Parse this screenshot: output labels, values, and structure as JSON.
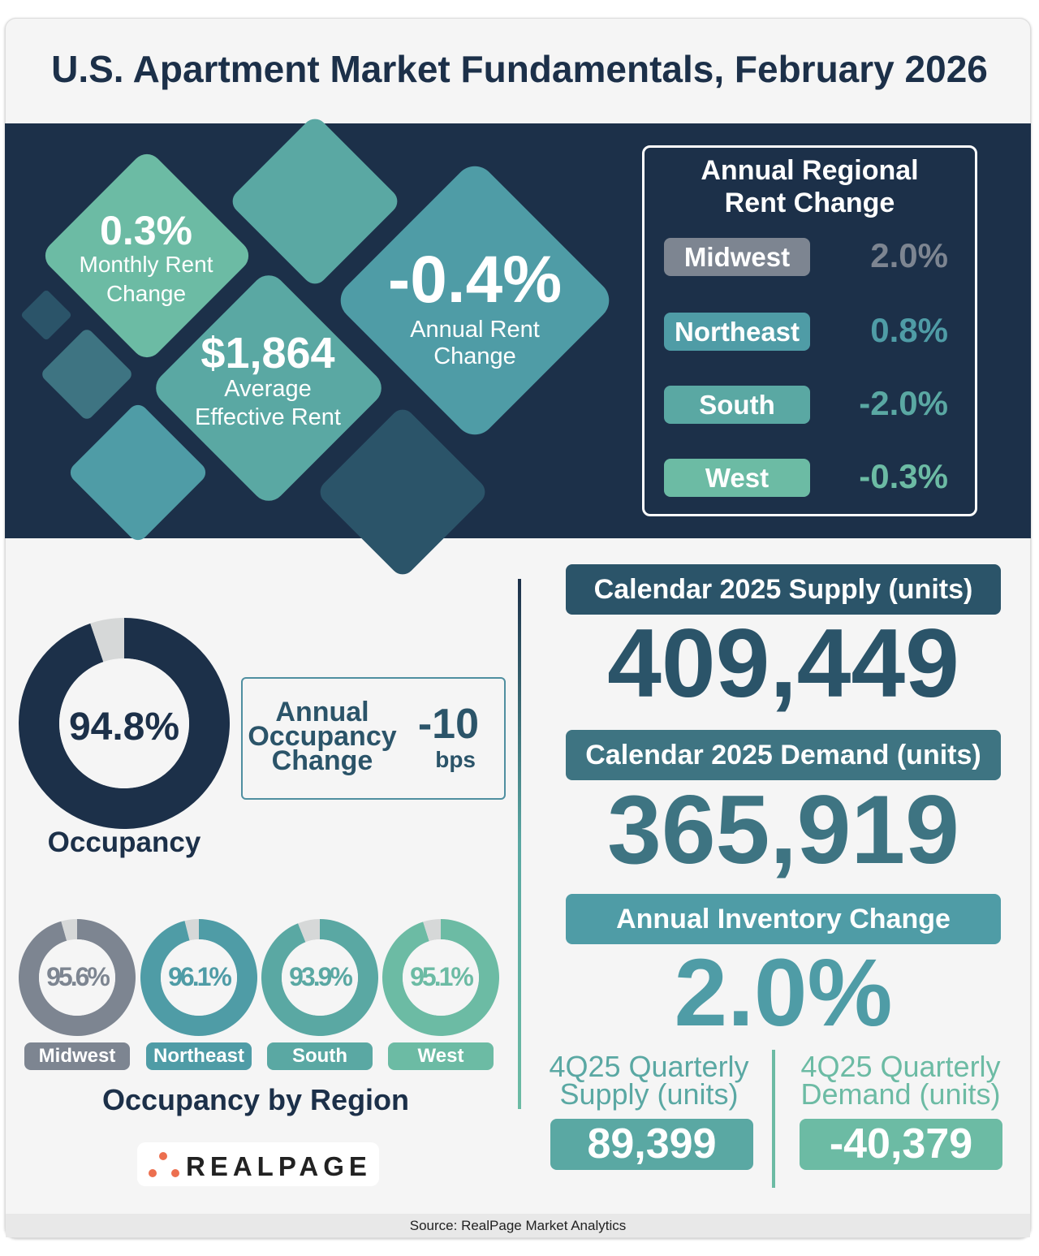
{
  "title": "U.S. Apartment Market Fundamentals, February 2026",
  "colors": {
    "navy": "#1c3049",
    "midwest": "#7d8591",
    "northeast": "#4f9ca6",
    "south": "#5aa8a3",
    "west": "#6cbba4",
    "dark_teal": "#2b5469"
  },
  "hero": {
    "monthly": {
      "value": "0.3%",
      "label1": "Monthly Rent",
      "label2": "Change"
    },
    "aer": {
      "value": "$1,864",
      "label1": "Average",
      "label2": "Effective Rent"
    },
    "annual": {
      "value": "-0.4%",
      "label1": "Annual Rent",
      "label2": "Change"
    }
  },
  "regional_rent": {
    "title1": "Annual Regional",
    "title2": "Rent Change",
    "rows": [
      {
        "region": "Midwest",
        "value": "2.0%"
      },
      {
        "region": "Northeast",
        "value": "0.8%"
      },
      {
        "region": "South",
        "value": "-2.0%"
      },
      {
        "region": "West",
        "value": "-0.3%"
      }
    ]
  },
  "occupancy": {
    "value": "94.8%",
    "percent": 94.8,
    "label": "Occupancy",
    "change": {
      "label1": "Annual",
      "label2": "Occupancy",
      "label3": "Change",
      "value": "-10",
      "unit": "bps"
    }
  },
  "occupancy_by_region": {
    "title": "Occupancy by Region",
    "regions": [
      {
        "region": "Midwest",
        "value": "95.6%",
        "percent": 95.6
      },
      {
        "region": "Northeast",
        "value": "96.1%",
        "percent": 96.1
      },
      {
        "region": "South",
        "value": "93.9%",
        "percent": 93.9
      },
      {
        "region": "West",
        "value": "95.1%",
        "percent": 95.1
      }
    ]
  },
  "supply": {
    "label": "Calendar 2025 Supply (units)",
    "value": "409,449"
  },
  "demand": {
    "label": "Calendar 2025 Demand (units)",
    "value": "365,919"
  },
  "inventory": {
    "label": "Annual Inventory Change",
    "value": "2.0%"
  },
  "quarterly_supply": {
    "label1": "4Q25 Quarterly",
    "label2": "Supply (units)",
    "value": "89,399"
  },
  "quarterly_demand": {
    "label1": "4Q25 Quarterly",
    "label2": "Demand (units)",
    "value": "-40,379"
  },
  "logo": "REALPAGE",
  "source": "Source: RealPage Market Analytics"
}
